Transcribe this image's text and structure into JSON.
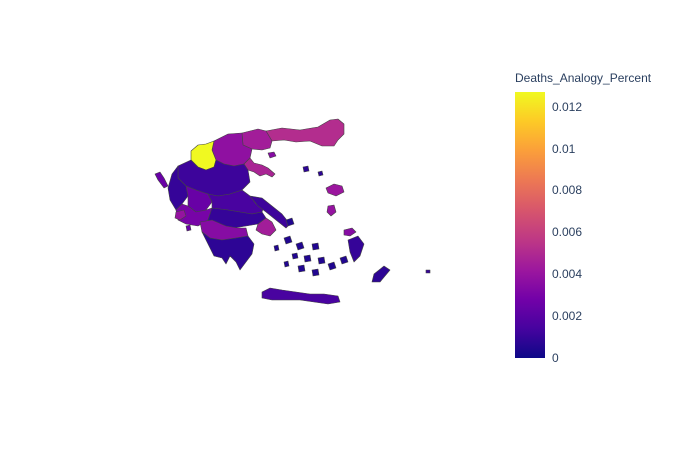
{
  "chart_data": {
    "type": "choropleth",
    "colorbar": {
      "title": "Deaths_Analogy_Percent",
      "range": [
        0,
        0.0127
      ],
      "ticks": [
        {
          "value": 0,
          "label": "0"
        },
        {
          "value": 0.002,
          "label": "0.002"
        },
        {
          "value": 0.004,
          "label": "0.004"
        },
        {
          "value": 0.006,
          "label": "0.006"
        },
        {
          "value": 0.008,
          "label": "0.008"
        },
        {
          "value": 0.01,
          "label": "0.01"
        },
        {
          "value": 0.012,
          "label": "0.012"
        }
      ],
      "colorscale": [
        "#0d0887",
        "#46039f",
        "#7201a8",
        "#9c179e",
        "#bd3786",
        "#d8576b",
        "#ed7953",
        "#fb9f3a",
        "#fdca26",
        "#f0f921"
      ]
    },
    "regions": [
      {
        "id": "thrace",
        "value": 0.0052
      },
      {
        "id": "east-macedonia",
        "value": 0.0045
      },
      {
        "id": "central-macedonia-east",
        "value": 0.0038
      },
      {
        "id": "central-macedonia-north",
        "value": 0.0127
      },
      {
        "id": "chalkidiki",
        "value": 0.0048
      },
      {
        "id": "west-macedonia",
        "value": 0.0012
      },
      {
        "id": "epirus",
        "value": 0.001
      },
      {
        "id": "thessaly",
        "value": 0.0015
      },
      {
        "id": "thessaly-west",
        "value": 0.0025
      },
      {
        "id": "central-greece",
        "value": 0.001
      },
      {
        "id": "aetolia",
        "value": 0.003
      },
      {
        "id": "attica",
        "value": 0.0045
      },
      {
        "id": "evia",
        "value": 0.0012
      },
      {
        "id": "peloponnese-north",
        "value": 0.0035
      },
      {
        "id": "peloponnese-south",
        "value": 0.0008
      },
      {
        "id": "crete",
        "value": 0.0015
      },
      {
        "id": "lesbos",
        "value": 0.0042
      },
      {
        "id": "chios",
        "value": 0.004
      },
      {
        "id": "samos",
        "value": 0.0035
      },
      {
        "id": "dodecanese",
        "value": 0.001
      },
      {
        "id": "rhodes",
        "value": 0.0008
      },
      {
        "id": "cyclades",
        "value": 0.0005
      },
      {
        "id": "ionian-islands",
        "value": 0.0025
      },
      {
        "id": "thasos",
        "value": 0.0035
      },
      {
        "id": "limnos",
        "value": 0.0008
      },
      {
        "id": "skyros",
        "value": 0.0005
      },
      {
        "id": "kefalonia",
        "value": 0.004
      }
    ]
  }
}
